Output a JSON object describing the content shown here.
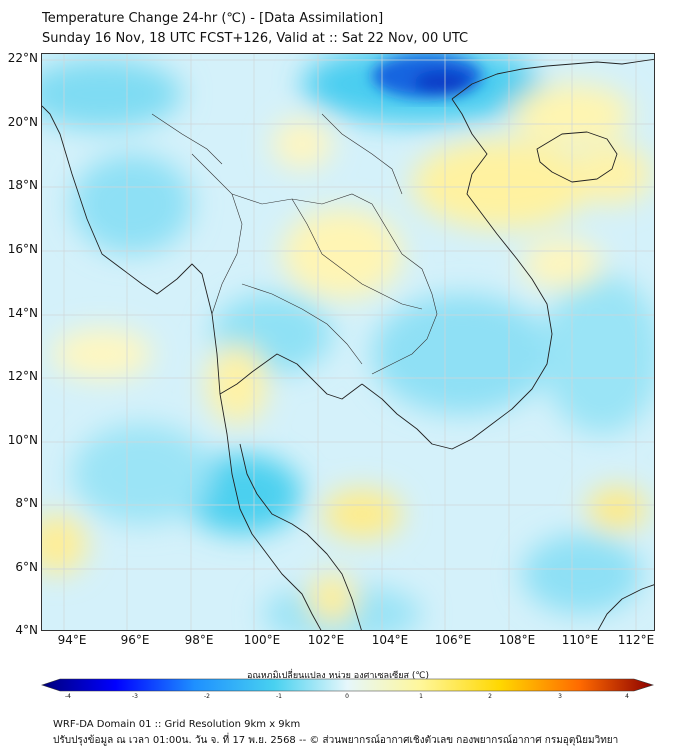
{
  "header": {
    "title": "Temperature Change 24-hr (℃) - [Data Assimilation]",
    "subtitle": "Sunday 16 Nov, 18 UTC FCST+126, Valid at :: Sat 22 Nov, 00 UTC"
  },
  "map": {
    "lat_labels": [
      "22°N",
      "20°N",
      "18°N",
      "16°N",
      "14°N",
      "12°N",
      "10°N",
      "8°N",
      "6°N",
      "4°N"
    ],
    "lon_labels": [
      "94°E",
      "96°E",
      "98°E",
      "100°E",
      "102°E",
      "104°E",
      "106°E",
      "108°E",
      "110°E",
      "112°E"
    ],
    "lat_range": [
      4,
      22
    ],
    "lon_range": [
      93,
      112.3
    ]
  },
  "colorbar": {
    "title": "อุณหภูมิเปลี่ยนแปลง หน่วย องศาเซลเซียส (℃)",
    "ticks": [
      "-4",
      "-3",
      "-2",
      "-1",
      "0",
      "1",
      "2",
      "3",
      "4"
    ],
    "range": [
      -4,
      4
    ],
    "colors": [
      "#00007a",
      "#0000ff",
      "#1e90ff",
      "#48d1f0",
      "#e6f7fb",
      "#fff79a",
      "#ffd700",
      "#ff8c00",
      "#ff0000",
      "#8b0000"
    ]
  },
  "footer": {
    "line1": "WRF-DA Domain 01 :: Grid Resolution 9km x 9km",
    "line2": "ปรับปรุงข้อมูล ณ เวลา 01:00น. วัน จ. ที่ 17 พ.ย. 2568 -- © ส่วนพยากรณ์อากาศเชิงตัวเลข กองพยากรณ์อากาศ กรมอุตุนิยมวิทยา"
  }
}
